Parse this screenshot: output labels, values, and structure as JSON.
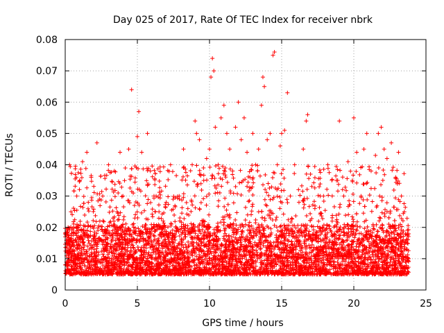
{
  "chart_data": {
    "type": "scatter",
    "title": "Day 025 of 2017, Rate Of TEC Index for receiver nbrk",
    "xlabel": "GPS time / hours",
    "ylabel": "ROTI / TECUs",
    "xlim": [
      0,
      25
    ],
    "ylim": [
      0,
      0.08
    ],
    "xticks": [
      0,
      5,
      10,
      15,
      20,
      25
    ],
    "xtick_labels": [
      "0",
      "5",
      "10",
      "15",
      "20",
      "25"
    ],
    "yticks": [
      0,
      0.01,
      0.02,
      0.03,
      0.04,
      0.05,
      0.06,
      0.07,
      0.08
    ],
    "ytick_labels": [
      "0",
      "0.01",
      "0.02",
      "0.03",
      "0.04",
      "0.05",
      "0.06",
      "0.07",
      "0.08"
    ],
    "grid": true,
    "marker": "+",
    "series": [
      {
        "name": "ROTI",
        "color": "#ff0000",
        "note": "dense band ~0.005-0.02 with spikes up to ~0.075",
        "points": [
          [
            0.0,
            0.008
          ],
          [
            0.1,
            0.012
          ],
          [
            0.2,
            0.02
          ],
          [
            0.3,
            0.04
          ],
          [
            0.4,
            0.025
          ],
          [
            0.5,
            0.015
          ],
          [
            0.6,
            0.009
          ],
          [
            0.8,
            0.03
          ],
          [
            0.9,
            0.011
          ],
          [
            1.0,
            0.035
          ],
          [
            1.2,
            0.041
          ],
          [
            1.3,
            0.018
          ],
          [
            1.5,
            0.044
          ],
          [
            1.6,
            0.028
          ],
          [
            1.8,
            0.036
          ],
          [
            2.0,
            0.013
          ],
          [
            2.2,
            0.047
          ],
          [
            2.4,
            0.022
          ],
          [
            2.6,
            0.03
          ],
          [
            2.8,
            0.016
          ],
          [
            3.0,
            0.04
          ],
          [
            3.2,
            0.01
          ],
          [
            3.4,
            0.038
          ],
          [
            3.6,
            0.025
          ],
          [
            3.8,
            0.044
          ],
          [
            4.0,
            0.03
          ],
          [
            4.2,
            0.018
          ],
          [
            4.4,
            0.045
          ],
          [
            4.6,
            0.064
          ],
          [
            4.8,
            0.027
          ],
          [
            5.0,
            0.049
          ],
          [
            5.1,
            0.057
          ],
          [
            5.3,
            0.044
          ],
          [
            5.5,
            0.02
          ],
          [
            5.7,
            0.05
          ],
          [
            5.9,
            0.038
          ],
          [
            6.1,
            0.012
          ],
          [
            6.3,
            0.03
          ],
          [
            6.5,
            0.025
          ],
          [
            6.7,
            0.015
          ],
          [
            7.0,
            0.028
          ],
          [
            7.3,
            0.04
          ],
          [
            7.6,
            0.018
          ],
          [
            7.9,
            0.03
          ],
          [
            8.2,
            0.045
          ],
          [
            8.5,
            0.026
          ],
          [
            8.8,
            0.04
          ],
          [
            9.0,
            0.054
          ],
          [
            9.1,
            0.05
          ],
          [
            9.3,
            0.048
          ],
          [
            9.6,
            0.035
          ],
          [
            9.8,
            0.042
          ],
          [
            10.0,
            0.045
          ],
          [
            10.1,
            0.068
          ],
          [
            10.2,
            0.074
          ],
          [
            10.3,
            0.07
          ],
          [
            10.4,
            0.052
          ],
          [
            10.6,
            0.04
          ],
          [
            10.8,
            0.055
          ],
          [
            11.0,
            0.059
          ],
          [
            11.2,
            0.05
          ],
          [
            11.4,
            0.045
          ],
          [
            11.6,
            0.038
          ],
          [
            11.8,
            0.052
          ],
          [
            12.0,
            0.06
          ],
          [
            12.2,
            0.048
          ],
          [
            12.4,
            0.055
          ],
          [
            12.6,
            0.044
          ],
          [
            12.8,
            0.036
          ],
          [
            13.0,
            0.05
          ],
          [
            13.2,
            0.04
          ],
          [
            13.4,
            0.045
          ],
          [
            13.6,
            0.059
          ],
          [
            13.7,
            0.068
          ],
          [
            13.8,
            0.065
          ],
          [
            14.0,
            0.048
          ],
          [
            14.2,
            0.05
          ],
          [
            14.4,
            0.075
          ],
          [
            14.5,
            0.076
          ],
          [
            14.7,
            0.04
          ],
          [
            14.9,
            0.046
          ],
          [
            15.0,
            0.05
          ],
          [
            15.2,
            0.051
          ],
          [
            15.4,
            0.063
          ],
          [
            15.6,
            0.03
          ],
          [
            15.9,
            0.04
          ],
          [
            16.2,
            0.028
          ],
          [
            16.5,
            0.045
          ],
          [
            16.7,
            0.054
          ],
          [
            16.8,
            0.056
          ],
          [
            17.0,
            0.037
          ],
          [
            17.3,
            0.026
          ],
          [
            17.6,
            0.033
          ],
          [
            17.9,
            0.03
          ],
          [
            18.2,
            0.04
          ],
          [
            18.5,
            0.022
          ],
          [
            18.8,
            0.035
          ],
          [
            19.0,
            0.054
          ],
          [
            19.3,
            0.03
          ],
          [
            19.6,
            0.041
          ],
          [
            19.9,
            0.035
          ],
          [
            20.0,
            0.055
          ],
          [
            20.2,
            0.044
          ],
          [
            20.5,
            0.03
          ],
          [
            20.7,
            0.045
          ],
          [
            20.9,
            0.05
          ],
          [
            21.2,
            0.038
          ],
          [
            21.5,
            0.043
          ],
          [
            21.7,
            0.05
          ],
          [
            21.9,
            0.052
          ],
          [
            22.1,
            0.045
          ],
          [
            22.3,
            0.042
          ],
          [
            22.6,
            0.047
          ],
          [
            22.9,
            0.036
          ],
          [
            23.1,
            0.044
          ],
          [
            23.3,
            0.03
          ],
          [
            23.5,
            0.025
          ],
          [
            23.7,
            0.015
          ],
          [
            23.8,
            0.01
          ]
        ]
      }
    ]
  }
}
